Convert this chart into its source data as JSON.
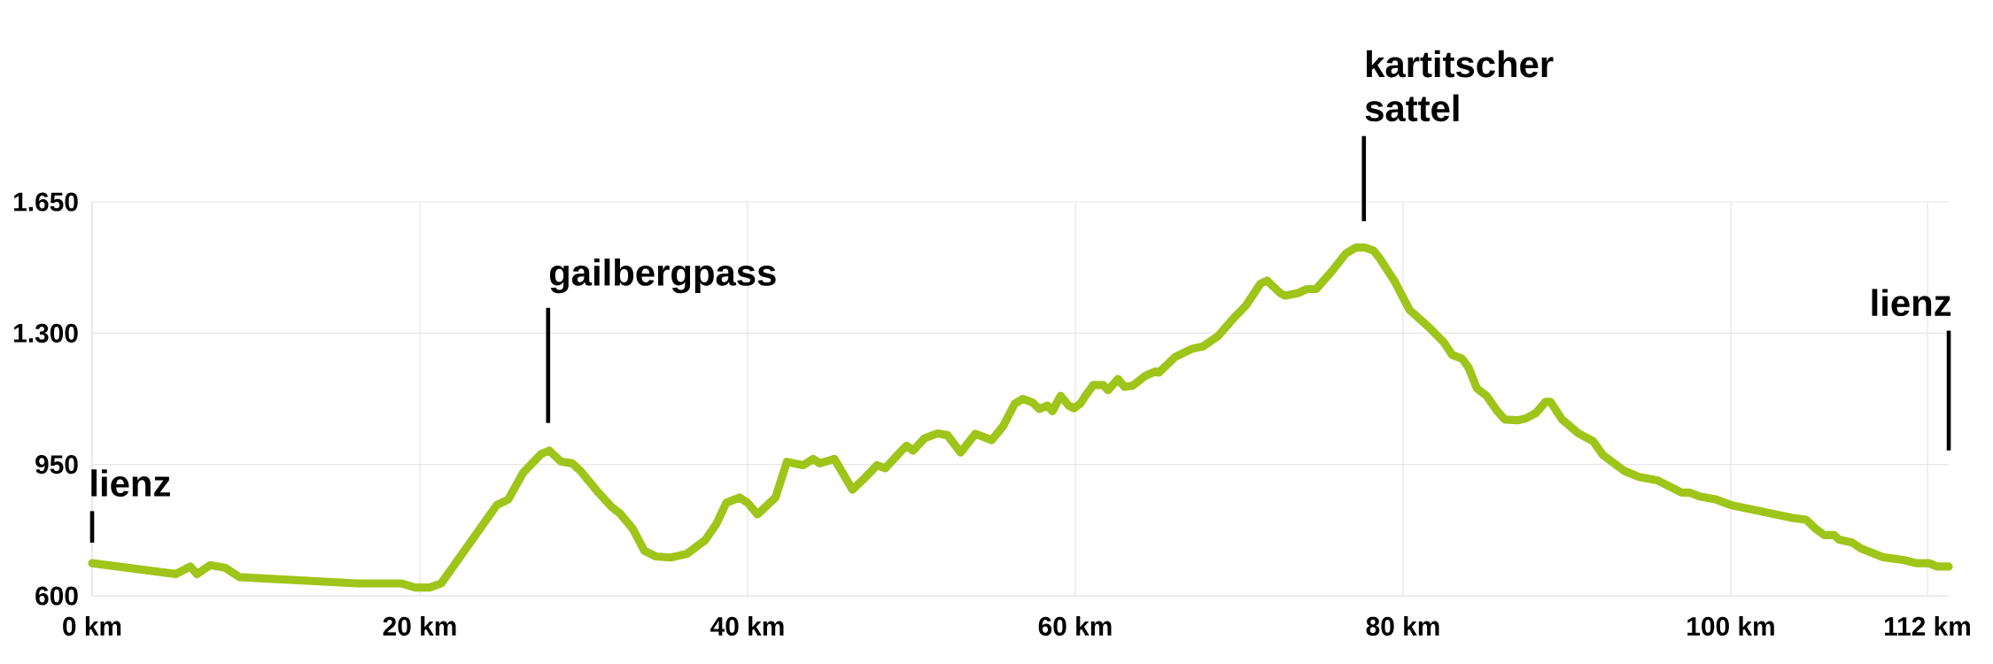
{
  "chart_data": {
    "type": "line",
    "x": [
      0,
      5.1,
      6.0,
      6.4,
      7.2,
      8.1,
      9.0,
      16.2,
      18.9,
      19.7,
      20.6,
      21.3,
      24.7,
      25.4,
      26.3,
      27.4,
      27.9,
      28.6,
      29.3,
      29.8,
      30.9,
      31.7,
      32.2,
      33.0,
      33.7,
      34.4,
      35.3,
      36.3,
      37.4,
      38.1,
      38.7,
      39.5,
      40.0,
      40.6,
      41.7,
      42.4,
      43.4,
      44.0,
      44.4,
      45.3,
      46.4,
      47.1,
      47.9,
      48.4,
      49.4,
      49.7,
      50.1,
      50.8,
      51.6,
      52.2,
      53.0,
      53.9,
      54.9,
      55.6,
      56.3,
      56.8,
      57.4,
      57.8,
      58.3,
      58.6,
      59.1,
      59.6,
      59.9,
      60.3,
      60.6,
      61.1,
      61.7,
      62.0,
      62.6,
      63.0,
      63.5,
      64.3,
      64.9,
      65.1,
      66.1,
      67.1,
      67.8,
      68.7,
      69.7,
      70.4,
      71.3,
      71.7,
      72.5,
      72.8,
      73.6,
      74.1,
      74.7,
      75.6,
      76.5,
      77.1,
      77.7,
      78.2,
      78.6,
      79.5,
      80.4,
      81.6,
      82.5,
      83.0,
      83.6,
      84.0,
      84.5,
      85.1,
      85.7,
      86.2,
      87.0,
      87.5,
      88.1,
      88.7,
      89.0,
      89.7,
      90.7,
      91.6,
      92.2,
      93.5,
      94.4,
      95.5,
      97.0,
      97.5,
      98.1,
      99.0,
      100.0,
      103.7,
      104.6,
      105.2,
      105.7,
      106.3,
      106.6,
      107.4,
      108.0,
      109.3,
      110.6,
      111.3,
      112.1,
      112.6,
      113.3
    ],
    "values": [
      687,
      658,
      678,
      658,
      682,
      675,
      650,
      633,
      633,
      622,
      622,
      633,
      842,
      857,
      928,
      978,
      987,
      958,
      953,
      933,
      875,
      837,
      820,
      778,
      720,
      705,
      702,
      712,
      748,
      792,
      848,
      862,
      848,
      817,
      862,
      957,
      948,
      965,
      953,
      965,
      883,
      912,
      948,
      940,
      987,
      1000,
      987,
      1020,
      1033,
      1028,
      982,
      1032,
      1015,
      1053,
      1112,
      1125,
      1115,
      1098,
      1107,
      1092,
      1133,
      1107,
      1100,
      1112,
      1132,
      1162,
      1162,
      1148,
      1178,
      1157,
      1160,
      1187,
      1198,
      1195,
      1237,
      1258,
      1265,
      1292,
      1342,
      1373,
      1432,
      1440,
      1407,
      1400,
      1407,
      1417,
      1418,
      1462,
      1512,
      1528,
      1528,
      1520,
      1498,
      1437,
      1362,
      1315,
      1275,
      1242,
      1232,
      1208,
      1153,
      1133,
      1095,
      1070,
      1068,
      1073,
      1087,
      1117,
      1117,
      1070,
      1033,
      1012,
      975,
      933,
      917,
      908,
      875,
      875,
      865,
      858,
      842,
      808,
      803,
      778,
      762,
      762,
      750,
      742,
      725,
      703,
      695,
      687,
      687,
      678,
      678
    ],
    "color": "#9fc51a",
    "xlim": [
      0,
      113.3
    ],
    "ylim": [
      600,
      1650
    ],
    "xticks": [
      {
        "value": 0,
        "label": "0 km"
      },
      {
        "value": 20,
        "label": "20 km"
      },
      {
        "value": 40,
        "label": "40 km"
      },
      {
        "value": 60,
        "label": "60 km"
      },
      {
        "value": 80,
        "label": "80 km"
      },
      {
        "value": 100,
        "label": "100 km"
      },
      {
        "value": 112,
        "label": "112 km"
      }
    ],
    "yticks": [
      {
        "value": 600,
        "label": "600"
      },
      {
        "value": 950,
        "label": "950"
      },
      {
        "value": 1300,
        "label": "1.300"
      },
      {
        "value": 1650,
        "label": "1.650"
      }
    ],
    "grid": true,
    "annotations": [
      "lienz",
      "gailbergpass",
      "kartitscher sattel",
      "lienz"
    ]
  }
}
